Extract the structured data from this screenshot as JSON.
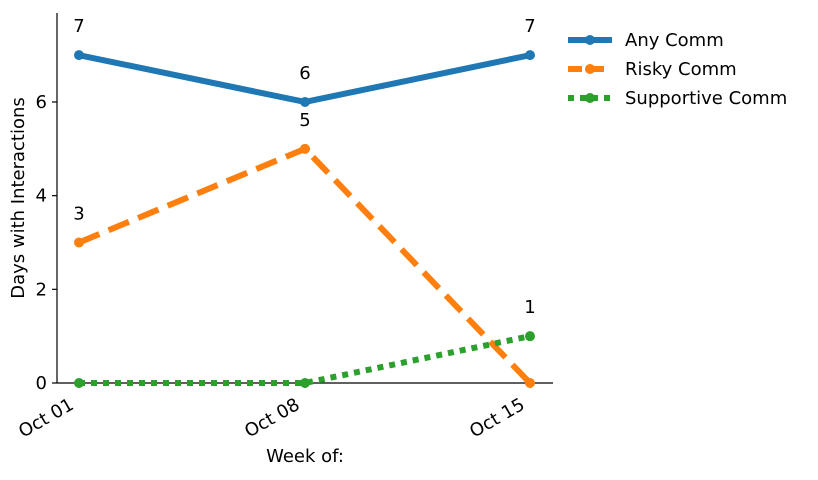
{
  "chart_data": {
    "type": "line",
    "title": "",
    "xlabel": "Week of:",
    "ylabel": "Days with Interactions",
    "categories": [
      "Oct 01",
      "Oct 08",
      "Oct 15"
    ],
    "ylim": [
      0,
      7.9
    ],
    "yticks": [
      0,
      2,
      4,
      6
    ],
    "grid": false,
    "legend_position": "outside-top-right",
    "series": [
      {
        "name": "Any Comm",
        "values": [
          7,
          6,
          7
        ],
        "labels": [
          "7",
          "6",
          "7"
        ],
        "color": "#1f77b4",
        "style": "solid"
      },
      {
        "name": "Risky Comm",
        "values": [
          3,
          5,
          0
        ],
        "labels": [
          "3",
          "5",
          ""
        ],
        "color": "#ff7f0e",
        "style": "dashed"
      },
      {
        "name": "Supportive Comm",
        "values": [
          0,
          0,
          1
        ],
        "labels": [
          "",
          "",
          "1"
        ],
        "color": "#2ca02c",
        "style": "dotted"
      }
    ]
  }
}
